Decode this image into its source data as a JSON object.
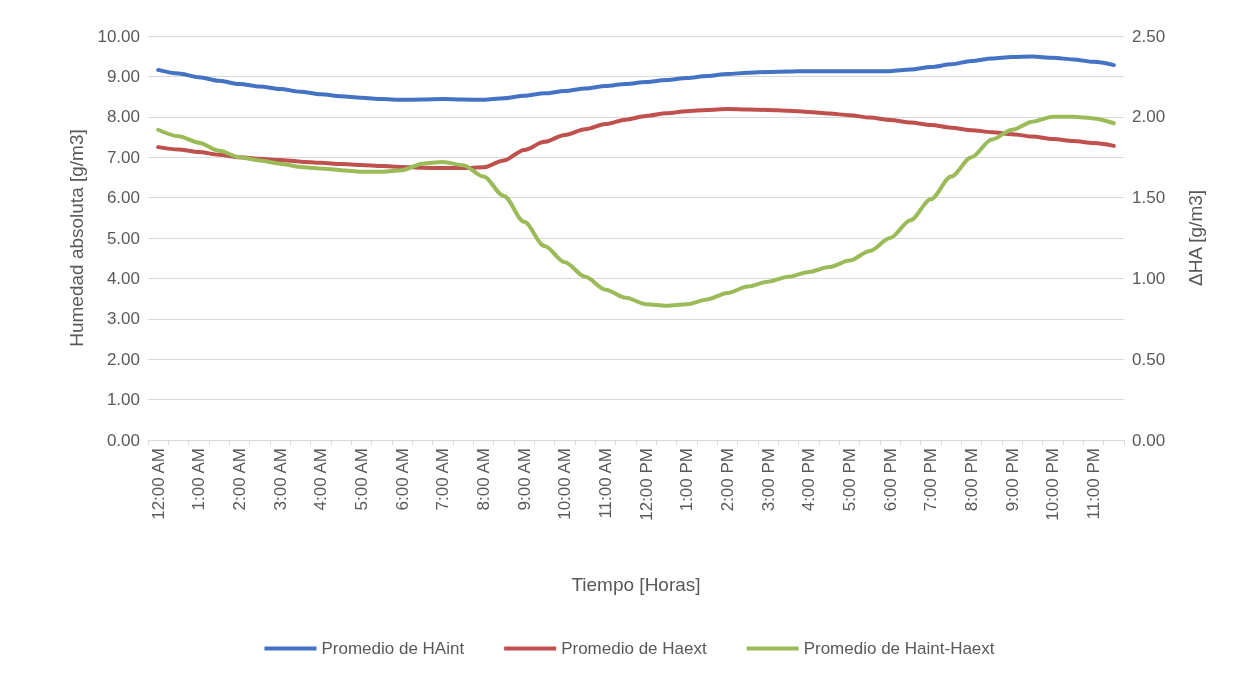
{
  "chart_data": {
    "type": "line",
    "xlabel": "Tiempo [Horas]",
    "ylabel": "Humedad absoluta [g/m3]",
    "y2label": "ΔHA [g/m3]",
    "categories": [
      "12:00 AM",
      null,
      "1:00 AM",
      null,
      "2:00 AM",
      null,
      "3:00 AM",
      null,
      "4:00 AM",
      null,
      "5:00 AM",
      null,
      "6:00 AM",
      null,
      "7:00 AM",
      null,
      "8:00 AM",
      null,
      "9:00 AM",
      null,
      "10:00 AM",
      null,
      "11:00 AM",
      null,
      "12:00 PM",
      null,
      "1:00 PM",
      null,
      "2:00 PM",
      null,
      "3:00 PM",
      null,
      "4:00 PM",
      null,
      "5:00 PM",
      null,
      "6:00 PM",
      null,
      "7:00 PM",
      null,
      "8:00 PM",
      null,
      "9:00 PM",
      null,
      "10:00 PM",
      null,
      "11:00 PM",
      null
    ],
    "series": [
      {
        "name": "Promedio de HAint",
        "color": "#4472c4",
        "values": [
          9.16,
          9.07,
          8.98,
          8.89,
          8.81,
          8.75,
          8.69,
          8.62,
          8.56,
          8.51,
          8.47,
          8.44,
          8.42,
          8.43,
          8.44,
          8.43,
          8.42,
          8.46,
          8.52,
          8.58,
          8.64,
          8.7,
          8.76,
          8.81,
          8.86,
          8.91,
          8.96,
          9.01,
          9.06,
          9.09,
          9.11,
          9.12,
          9.13,
          9.13,
          9.13,
          9.13,
          9.13,
          9.17,
          9.23,
          9.3,
          9.38,
          9.44,
          9.48,
          9.49,
          9.46,
          9.42,
          9.36,
          9.28
        ]
      },
      {
        "name": "Promedio de Haext",
        "color": "#c0504d",
        "values": [
          7.25,
          7.19,
          7.13,
          7.06,
          7.0,
          6.96,
          6.93,
          6.89,
          6.86,
          6.83,
          6.81,
          6.78,
          6.76,
          6.74,
          6.73,
          6.73,
          6.75,
          6.92,
          7.18,
          7.38,
          7.55,
          7.69,
          7.82,
          7.93,
          8.02,
          8.09,
          8.14,
          8.17,
          8.19,
          8.18,
          8.17,
          8.15,
          8.12,
          8.08,
          8.04,
          7.98,
          7.92,
          7.86,
          7.8,
          7.73,
          7.67,
          7.62,
          7.57,
          7.51,
          7.45,
          7.4,
          7.35,
          7.28
        ]
      },
      {
        "name": "Promedio de Haint-Haext",
        "color": "#9bbb59",
        "axis": "y2",
        "values": [
          1.92,
          1.88,
          1.84,
          1.79,
          1.75,
          1.73,
          1.71,
          1.69,
          1.68,
          1.67,
          1.66,
          1.66,
          1.67,
          1.71,
          1.72,
          1.7,
          1.63,
          1.51,
          1.35,
          1.2,
          1.1,
          1.01,
          0.93,
          0.88,
          0.84,
          0.83,
          0.84,
          0.87,
          0.91,
          0.95,
          0.98,
          1.01,
          1.04,
          1.07,
          1.11,
          1.17,
          1.25,
          1.36,
          1.49,
          1.63,
          1.75,
          1.86,
          1.92,
          1.97,
          2.0,
          2.0,
          1.99,
          1.96
        ]
      }
    ],
    "ylim": [
      0,
      10
    ],
    "yticks": [
      {
        "value": 0,
        "label": "0.00"
      },
      {
        "value": 1,
        "label": "1.00"
      },
      {
        "value": 2,
        "label": "2.00"
      },
      {
        "value": 3,
        "label": "3.00"
      },
      {
        "value": 4,
        "label": "4.00"
      },
      {
        "value": 5,
        "label": "5.00"
      },
      {
        "value": 6,
        "label": "6.00"
      },
      {
        "value": 7,
        "label": "7.00"
      },
      {
        "value": 8,
        "label": "8.00"
      },
      {
        "value": 9,
        "label": "9.00"
      },
      {
        "value": 10,
        "label": "10.00"
      }
    ],
    "y2lim": [
      0,
      2.5
    ],
    "y2ticks": [
      {
        "value": 0,
        "label": "0.00"
      },
      {
        "value": 0.5,
        "label": "0.50"
      },
      {
        "value": 1,
        "label": "1.00"
      },
      {
        "value": 1.5,
        "label": "1.50"
      },
      {
        "value": 2,
        "label": "2.00"
      },
      {
        "value": 2.5,
        "label": "2.50"
      }
    ],
    "grid": "y",
    "legend": "bottom",
    "marker": "none",
    "line_style": "solid"
  }
}
